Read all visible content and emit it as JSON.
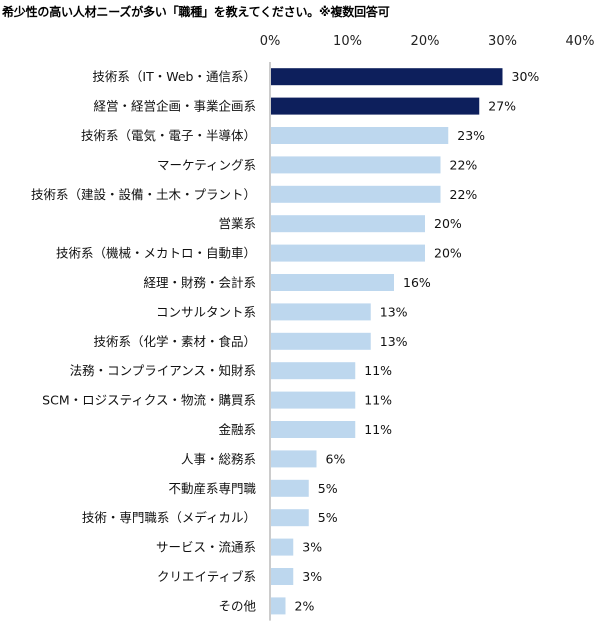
{
  "chart_data": {
    "type": "bar",
    "orientation": "horizontal",
    "title": "希少性の高い人材ニーズが多い「職種」を教えてください。※複数回答可",
    "xlim": [
      0,
      40
    ],
    "ticks": [
      "0%",
      "10%",
      "20%",
      "30%",
      "40%"
    ],
    "tick_values": [
      0,
      10,
      20,
      30,
      40
    ],
    "grid": false,
    "legend": "none",
    "categories": [
      "技術系（IT・Web・通信系）",
      "経営・経営企画・事業企画系",
      "技術系（電気・電子・半導体）",
      "マーケティング系",
      "技術系（建設・設備・土木・プラント）",
      "営業系",
      "技術系（機械・メカトロ・自動車）",
      "経理・財務・会計系",
      "コンサルタント系",
      "技術系（化学・素材・食品）",
      "法務・コンプライアンス・知財系",
      "SCM・ロジスティクス・物流・購買系",
      "金融系",
      "人事・総務系",
      "不動産系専門職",
      "技術・専門職系（メディカル）",
      "サービス・流通系",
      "クリエイティブ系",
      "その他"
    ],
    "values": [
      30,
      27,
      23,
      22,
      22,
      20,
      20,
      16,
      13,
      13,
      11,
      11,
      11,
      6,
      5,
      5,
      3,
      3,
      2
    ],
    "value_labels": [
      "30%",
      "27%",
      "23%",
      "22%",
      "22%",
      "20%",
      "20%",
      "16%",
      "13%",
      "13%",
      "11%",
      "11%",
      "11%",
      "6%",
      "5%",
      "5%",
      "3%",
      "3%",
      "2%"
    ],
    "highlight_count": 2,
    "colors": {
      "highlight": "#0d1f5c",
      "normal": "#bdd7ee"
    }
  }
}
